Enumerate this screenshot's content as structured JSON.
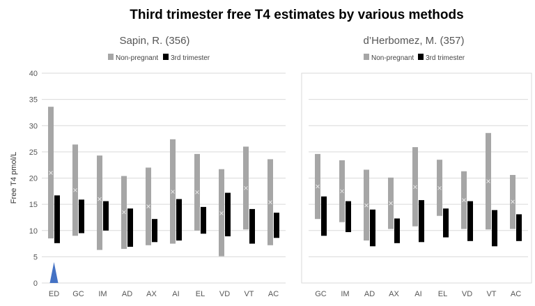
{
  "title": "Third trimester free T4 estimates by various methods",
  "ylabel": "Free T4 pmol/L",
  "colors": {
    "non_pregnant": "#a6a6a6",
    "third_trimester": "#000000",
    "marker": "#e8e8e8",
    "grid": "#d9d9d9",
    "panel_border": "#d9d9d9",
    "arrow": "#4472c4"
  },
  "legend": {
    "non_pregnant": "Non-pregnant",
    "third_trimester": "3rd trimester"
  },
  "y_ticks": [
    "0",
    "5",
    "10",
    "15",
    "20",
    "25",
    "30",
    "35",
    "40"
  ],
  "chart_data": [
    {
      "type": "bar",
      "title": "Sapin, R. (356)",
      "ylabel": "Free T4 pmol/L",
      "ylim": [
        0,
        40
      ],
      "grid": true,
      "legend_position": "top",
      "categories": [
        "ED",
        "GC",
        "IM",
        "AD",
        "AX",
        "AI",
        "EL",
        "VD",
        "VT",
        "AC"
      ],
      "series": [
        {
          "name": "Non-pregnant",
          "low": [
            8.5,
            9.0,
            6.3,
            6.5,
            7.2,
            7.5,
            10.0,
            5.1,
            10.2,
            7.2
          ],
          "high": [
            33.6,
            26.4,
            24.3,
            20.4,
            22.0,
            27.4,
            24.6,
            21.7,
            26.0,
            23.6
          ],
          "mid": [
            21.0,
            17.7,
            16.0,
            13.5,
            14.6,
            17.4,
            17.3,
            13.3,
            18.1,
            15.4
          ]
        },
        {
          "name": "3rd trimester",
          "low": [
            7.6,
            9.5,
            10.0,
            6.9,
            7.8,
            8.1,
            9.4,
            8.9,
            7.5,
            8.6
          ],
          "high": [
            16.7,
            15.9,
            15.6,
            14.2,
            12.2,
            16.0,
            14.5,
            17.2,
            14.1,
            13.4
          ]
        }
      ],
      "annotation": {
        "type": "arrow",
        "category": "ED"
      }
    },
    {
      "type": "bar",
      "title": "d’Herbomez, M. (357)",
      "ylim": [
        0,
        40
      ],
      "grid": true,
      "legend_position": "top",
      "categories": [
        "GC",
        "IM",
        "AD",
        "AX",
        "AI",
        "EL",
        "VD",
        "VT",
        "AC"
      ],
      "series": [
        {
          "name": "Non-pregnant",
          "low": [
            12.2,
            11.6,
            8.1,
            10.3,
            10.8,
            12.8,
            10.3,
            10.2,
            10.3
          ],
          "high": [
            24.6,
            23.4,
            21.6,
            20.1,
            25.9,
            23.5,
            21.3,
            28.6,
            20.6
          ],
          "mid": [
            18.4,
            17.5,
            14.8,
            15.2,
            18.3,
            18.1,
            15.8,
            19.4,
            15.5
          ]
        },
        {
          "name": "3rd trimester",
          "low": [
            9.0,
            9.7,
            7.0,
            7.6,
            7.8,
            8.7,
            8.0,
            7.0,
            8.0
          ],
          "high": [
            16.5,
            15.6,
            14.0,
            12.3,
            15.8,
            14.2,
            15.6,
            13.9,
            13.1
          ]
        }
      ]
    }
  ]
}
